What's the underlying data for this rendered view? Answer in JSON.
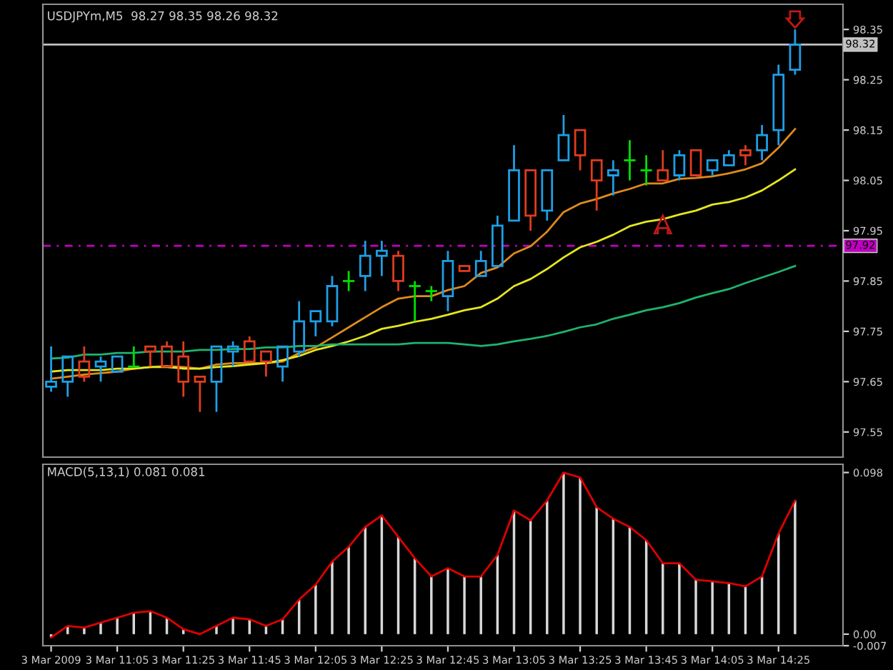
{
  "chart_data": [
    {
      "type": "candlestick",
      "title": "USDJPYm,M5  98.27 98.35 98.26 98.32",
      "categories": [
        null,
        null,
        null,
        null,
        null,
        null,
        null,
        null,
        null,
        null,
        null,
        null,
        null,
        null,
        null,
        null,
        null,
        null,
        null,
        null,
        null,
        null,
        null,
        null,
        null,
        null,
        null,
        null,
        null,
        null,
        null,
        null,
        null,
        null,
        null,
        null,
        null,
        null,
        null,
        null,
        null,
        null,
        null,
        null,
        null,
        null
      ],
      "ohlc": [
        [
          97.64,
          97.72,
          97.63,
          97.65
        ],
        [
          97.65,
          97.7,
          97.62,
          97.7
        ],
        [
          97.69,
          97.72,
          97.65,
          97.66
        ],
        [
          97.68,
          97.7,
          97.65,
          97.69
        ],
        [
          97.67,
          97.7,
          97.67,
          97.7
        ],
        [
          97.68,
          97.72,
          97.68,
          97.68
        ],
        [
          97.72,
          97.72,
          97.68,
          97.71
        ],
        [
          97.72,
          97.73,
          97.68,
          97.68
        ],
        [
          97.7,
          97.73,
          97.62,
          97.65
        ],
        [
          97.66,
          97.66,
          97.59,
          97.65
        ],
        [
          97.65,
          97.72,
          97.59,
          97.72
        ],
        [
          97.71,
          97.73,
          97.68,
          97.72
        ],
        [
          97.73,
          97.74,
          97.69,
          97.69
        ],
        [
          97.71,
          97.71,
          97.66,
          97.69
        ],
        [
          97.68,
          97.72,
          97.65,
          97.72
        ],
        [
          97.71,
          97.81,
          97.7,
          97.77
        ],
        [
          97.77,
          97.79,
          97.74,
          97.79
        ],
        [
          97.77,
          97.86,
          97.76,
          97.84
        ],
        [
          97.85,
          97.87,
          97.83,
          97.85
        ],
        [
          97.86,
          97.93,
          97.83,
          97.9
        ],
        [
          97.9,
          97.93,
          97.86,
          97.91
        ],
        [
          97.9,
          97.91,
          97.83,
          97.85
        ],
        [
          97.84,
          97.85,
          97.77,
          97.84
        ],
        [
          97.83,
          97.84,
          97.81,
          97.83
        ],
        [
          97.82,
          97.91,
          97.79,
          97.89
        ],
        [
          97.88,
          97.88,
          97.87,
          97.87
        ],
        [
          97.86,
          97.91,
          97.86,
          97.89
        ],
        [
          97.88,
          97.98,
          97.88,
          97.96
        ],
        [
          97.97,
          98.12,
          97.97,
          98.07
        ],
        [
          98.07,
          98.07,
          97.95,
          97.98
        ],
        [
          97.99,
          98.07,
          97.97,
          98.07
        ],
        [
          98.09,
          98.18,
          98.09,
          98.14
        ],
        [
          98.15,
          98.15,
          98.07,
          98.1
        ],
        [
          98.09,
          98.09,
          97.99,
          98.05
        ],
        [
          98.06,
          98.09,
          98.02,
          98.07
        ],
        [
          98.09,
          98.13,
          98.05,
          98.09
        ],
        [
          98.07,
          98.1,
          98.04,
          98.07
        ],
        [
          98.07,
          98.11,
          98.05,
          98.05
        ],
        [
          98.06,
          98.11,
          98.05,
          98.1
        ],
        [
          98.11,
          98.11,
          98.06,
          98.06
        ],
        [
          98.07,
          98.09,
          98.06,
          98.09
        ],
        [
          98.08,
          98.11,
          98.08,
          98.1
        ],
        [
          98.11,
          98.12,
          98.08,
          98.1
        ],
        [
          98.11,
          98.16,
          98.09,
          98.14
        ],
        [
          98.15,
          98.28,
          98.12,
          98.26
        ],
        [
          98.27,
          98.35,
          98.26,
          98.32
        ]
      ],
      "colors": [
        "#1e9fe6",
        "#1e9fe6",
        "#e03c1e",
        "#1e9fe6",
        "#1e9fe6",
        "#00e000",
        "#e03c1e",
        "#e03c1e",
        "#e03c1e",
        "#e03c1e",
        "#1e9fe6",
        "#1e9fe6",
        "#e03c1e",
        "#e03c1e",
        "#1e9fe6",
        "#1e9fe6",
        "#1e9fe6",
        "#1e9fe6",
        "#00e000",
        "#1e9fe6",
        "#1e9fe6",
        "#e03c1e",
        "#00e000",
        "#00e000",
        "#1e9fe6",
        "#e03c1e",
        "#1e9fe6",
        "#1e9fe6",
        "#1e9fe6",
        "#e03c1e",
        "#1e9fe6",
        "#1e9fe6",
        "#e03c1e",
        "#e03c1e",
        "#1e9fe6",
        "#00e000",
        "#00e000",
        "#e03c1e",
        "#1e9fe6",
        "#e03c1e",
        "#1e9fe6",
        "#1e9fe6",
        "#e03c1e",
        "#1e9fe6",
        "#1e9fe6",
        "#1e9fe6"
      ],
      "series": [
        {
          "type": "line",
          "color": "#e08a1e",
          "values": [
            97.656,
            97.66,
            97.664,
            97.667,
            97.67,
            97.676,
            97.679,
            97.681,
            97.679,
            97.676,
            97.684,
            97.687,
            97.687,
            97.687,
            97.69,
            97.707,
            97.718,
            97.738,
            97.758,
            97.778,
            97.798,
            97.815,
            97.82,
            97.82,
            97.832,
            97.84,
            97.866,
            97.877,
            97.905,
            97.919,
            97.948,
            97.987,
            98.004,
            98.013,
            98.024,
            98.033,
            98.044,
            98.044,
            98.053,
            98.055,
            98.058,
            98.064,
            98.072,
            98.084,
            98.115,
            98.152
          ]
        },
        {
          "type": "line",
          "color": "#e6e61e",
          "values": [
            97.67,
            97.673,
            97.673,
            97.673,
            97.676,
            97.676,
            97.679,
            97.679,
            97.676,
            97.676,
            97.679,
            97.681,
            97.684,
            97.687,
            97.693,
            97.701,
            97.713,
            97.721,
            97.73,
            97.741,
            97.755,
            97.761,
            97.769,
            97.775,
            97.783,
            97.792,
            97.798,
            97.815,
            97.84,
            97.854,
            97.874,
            97.897,
            97.917,
            97.928,
            97.942,
            97.959,
            97.968,
            97.973,
            97.982,
            97.99,
            98.002,
            98.007,
            98.016,
            98.03,
            98.05,
            98.072
          ]
        },
        {
          "type": "line",
          "color": "#1eb46e",
          "values": [
            97.696,
            97.698,
            97.704,
            97.704,
            97.707,
            97.707,
            97.71,
            97.71,
            97.71,
            97.713,
            97.713,
            97.715,
            97.715,
            97.718,
            97.718,
            97.721,
            97.721,
            97.724,
            97.724,
            97.724,
            97.724,
            97.724,
            97.727,
            97.727,
            97.727,
            97.724,
            97.721,
            97.724,
            97.73,
            97.735,
            97.741,
            97.749,
            97.758,
            97.764,
            97.775,
            97.783,
            97.792,
            97.798,
            97.806,
            97.817,
            97.826,
            97.834,
            97.846,
            97.857,
            97.868,
            97.88
          ]
        }
      ],
      "ref_lines": [
        {
          "axis": "y",
          "value": 98.32,
          "label": "98.32",
          "color": "#c0c0c0",
          "line_style": "solid"
        },
        {
          "axis": "y",
          "value": 97.92,
          "label": "97.92",
          "color": "#c000c0",
          "line_style": "dashed"
        }
      ],
      "ylim": [
        97.5,
        98.4
      ],
      "yticks": [
        97.55,
        97.65,
        97.75,
        97.85,
        97.95,
        98.05,
        98.15,
        98.25,
        98.35
      ],
      "tick_labels": "y"
    },
    {
      "type": "bar",
      "title": "MACD(5,13,1) 0.081 0.081",
      "categories": [
        "3 Mar 2009",
        null,
        null,
        null,
        "3 Mar 11:05",
        null,
        null,
        null,
        "3 Mar 11:25",
        null,
        null,
        null,
        "3 Mar 11:45",
        null,
        null,
        null,
        "3 Mar 12:05",
        null,
        null,
        null,
        "3 Mar 12:25",
        null,
        null,
        null,
        "3 Mar 12:45",
        null,
        null,
        null,
        "3 Mar 13:05",
        null,
        null,
        null,
        "3 Mar 13:25",
        null,
        null,
        null,
        "3 Mar 13:45",
        null,
        null,
        null,
        "3 Mar 14:05",
        null,
        null,
        null,
        "3 Mar 14:25",
        null
      ],
      "series": [
        {
          "type": "bar",
          "color": "#d8d8d8",
          "values": [
            -0.002,
            0.005,
            0.004,
            0.007,
            0.01,
            0.013,
            0.014,
            0.01,
            0.003,
            0.0,
            0.005,
            0.01,
            0.009,
            0.005,
            0.009,
            0.021,
            0.03,
            0.044,
            0.053,
            0.065,
            0.072,
            0.059,
            0.046,
            0.035,
            0.04,
            0.035,
            0.035,
            0.048,
            0.075,
            0.069,
            0.081,
            0.098,
            0.095,
            0.077,
            0.07,
            0.065,
            0.057,
            0.043,
            0.043,
            0.033,
            0.032,
            0.031,
            0.029,
            0.035,
            0.061,
            0.081
          ]
        },
        {
          "type": "line",
          "color": "#e00000",
          "values": [
            -0.002,
            0.005,
            0.004,
            0.007,
            0.01,
            0.013,
            0.014,
            0.01,
            0.003,
            0.0,
            0.005,
            0.01,
            0.009,
            0.005,
            0.009,
            0.021,
            0.03,
            0.044,
            0.053,
            0.065,
            0.072,
            0.059,
            0.046,
            0.035,
            0.04,
            0.035,
            0.035,
            0.048,
            0.075,
            0.069,
            0.081,
            0.098,
            0.095,
            0.077,
            0.07,
            0.065,
            0.057,
            0.043,
            0.043,
            0.033,
            0.032,
            0.031,
            0.029,
            0.035,
            0.061,
            0.081
          ]
        }
      ],
      "ylim": [
        -0.007,
        0.103
      ],
      "yticks": [
        0.098,
        {
          "value": 0,
          "label": "0.00"
        },
        -0.007
      ]
    }
  ]
}
